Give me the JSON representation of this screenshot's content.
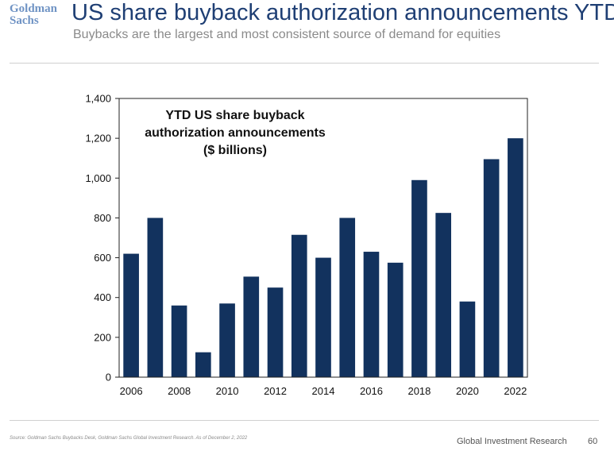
{
  "logo": {
    "line1": "Goldman",
    "line2": "Sachs"
  },
  "header": {
    "title": "US share buyback authorization announcements YTD",
    "subtitle": "Buybacks are the largest and most consistent source of demand for equities"
  },
  "footer": {
    "source": "Source: Goldman Sachs Buybacks Desk, Goldman Sachs Global Investment Research. As of December 2, 2022",
    "brand": "Global Investment Research",
    "page_number": "60"
  },
  "colors": {
    "bar": "#12325e",
    "title": "#1f3f74",
    "logo": "#6f93c4"
  },
  "chart_data": {
    "type": "bar",
    "title_lines": [
      "YTD US share buyback",
      "authorization announcements",
      "($ billions)"
    ],
    "categories": [
      "2006",
      "2007",
      "2008",
      "2009",
      "2010",
      "2011",
      "2012",
      "2013",
      "2014",
      "2015",
      "2016",
      "2017",
      "2018",
      "2019",
      "2020",
      "2021",
      "2022"
    ],
    "values": [
      620,
      800,
      360,
      125,
      370,
      505,
      450,
      715,
      600,
      800,
      630,
      575,
      990,
      825,
      380,
      1095,
      1200
    ],
    "x_tick_labels": [
      "2006",
      "2008",
      "2010",
      "2012",
      "2014",
      "2016",
      "2018",
      "2020",
      "2022"
    ],
    "y_ticks": [
      0,
      200,
      400,
      600,
      800,
      1000,
      1200,
      1400
    ],
    "y_tick_labels": [
      "0",
      "200",
      "400",
      "600",
      "800",
      "1,000",
      "1,200",
      "1,400"
    ],
    "ylim": [
      0,
      1400
    ],
    "grid": false,
    "xlabel": "",
    "ylabel": ""
  }
}
